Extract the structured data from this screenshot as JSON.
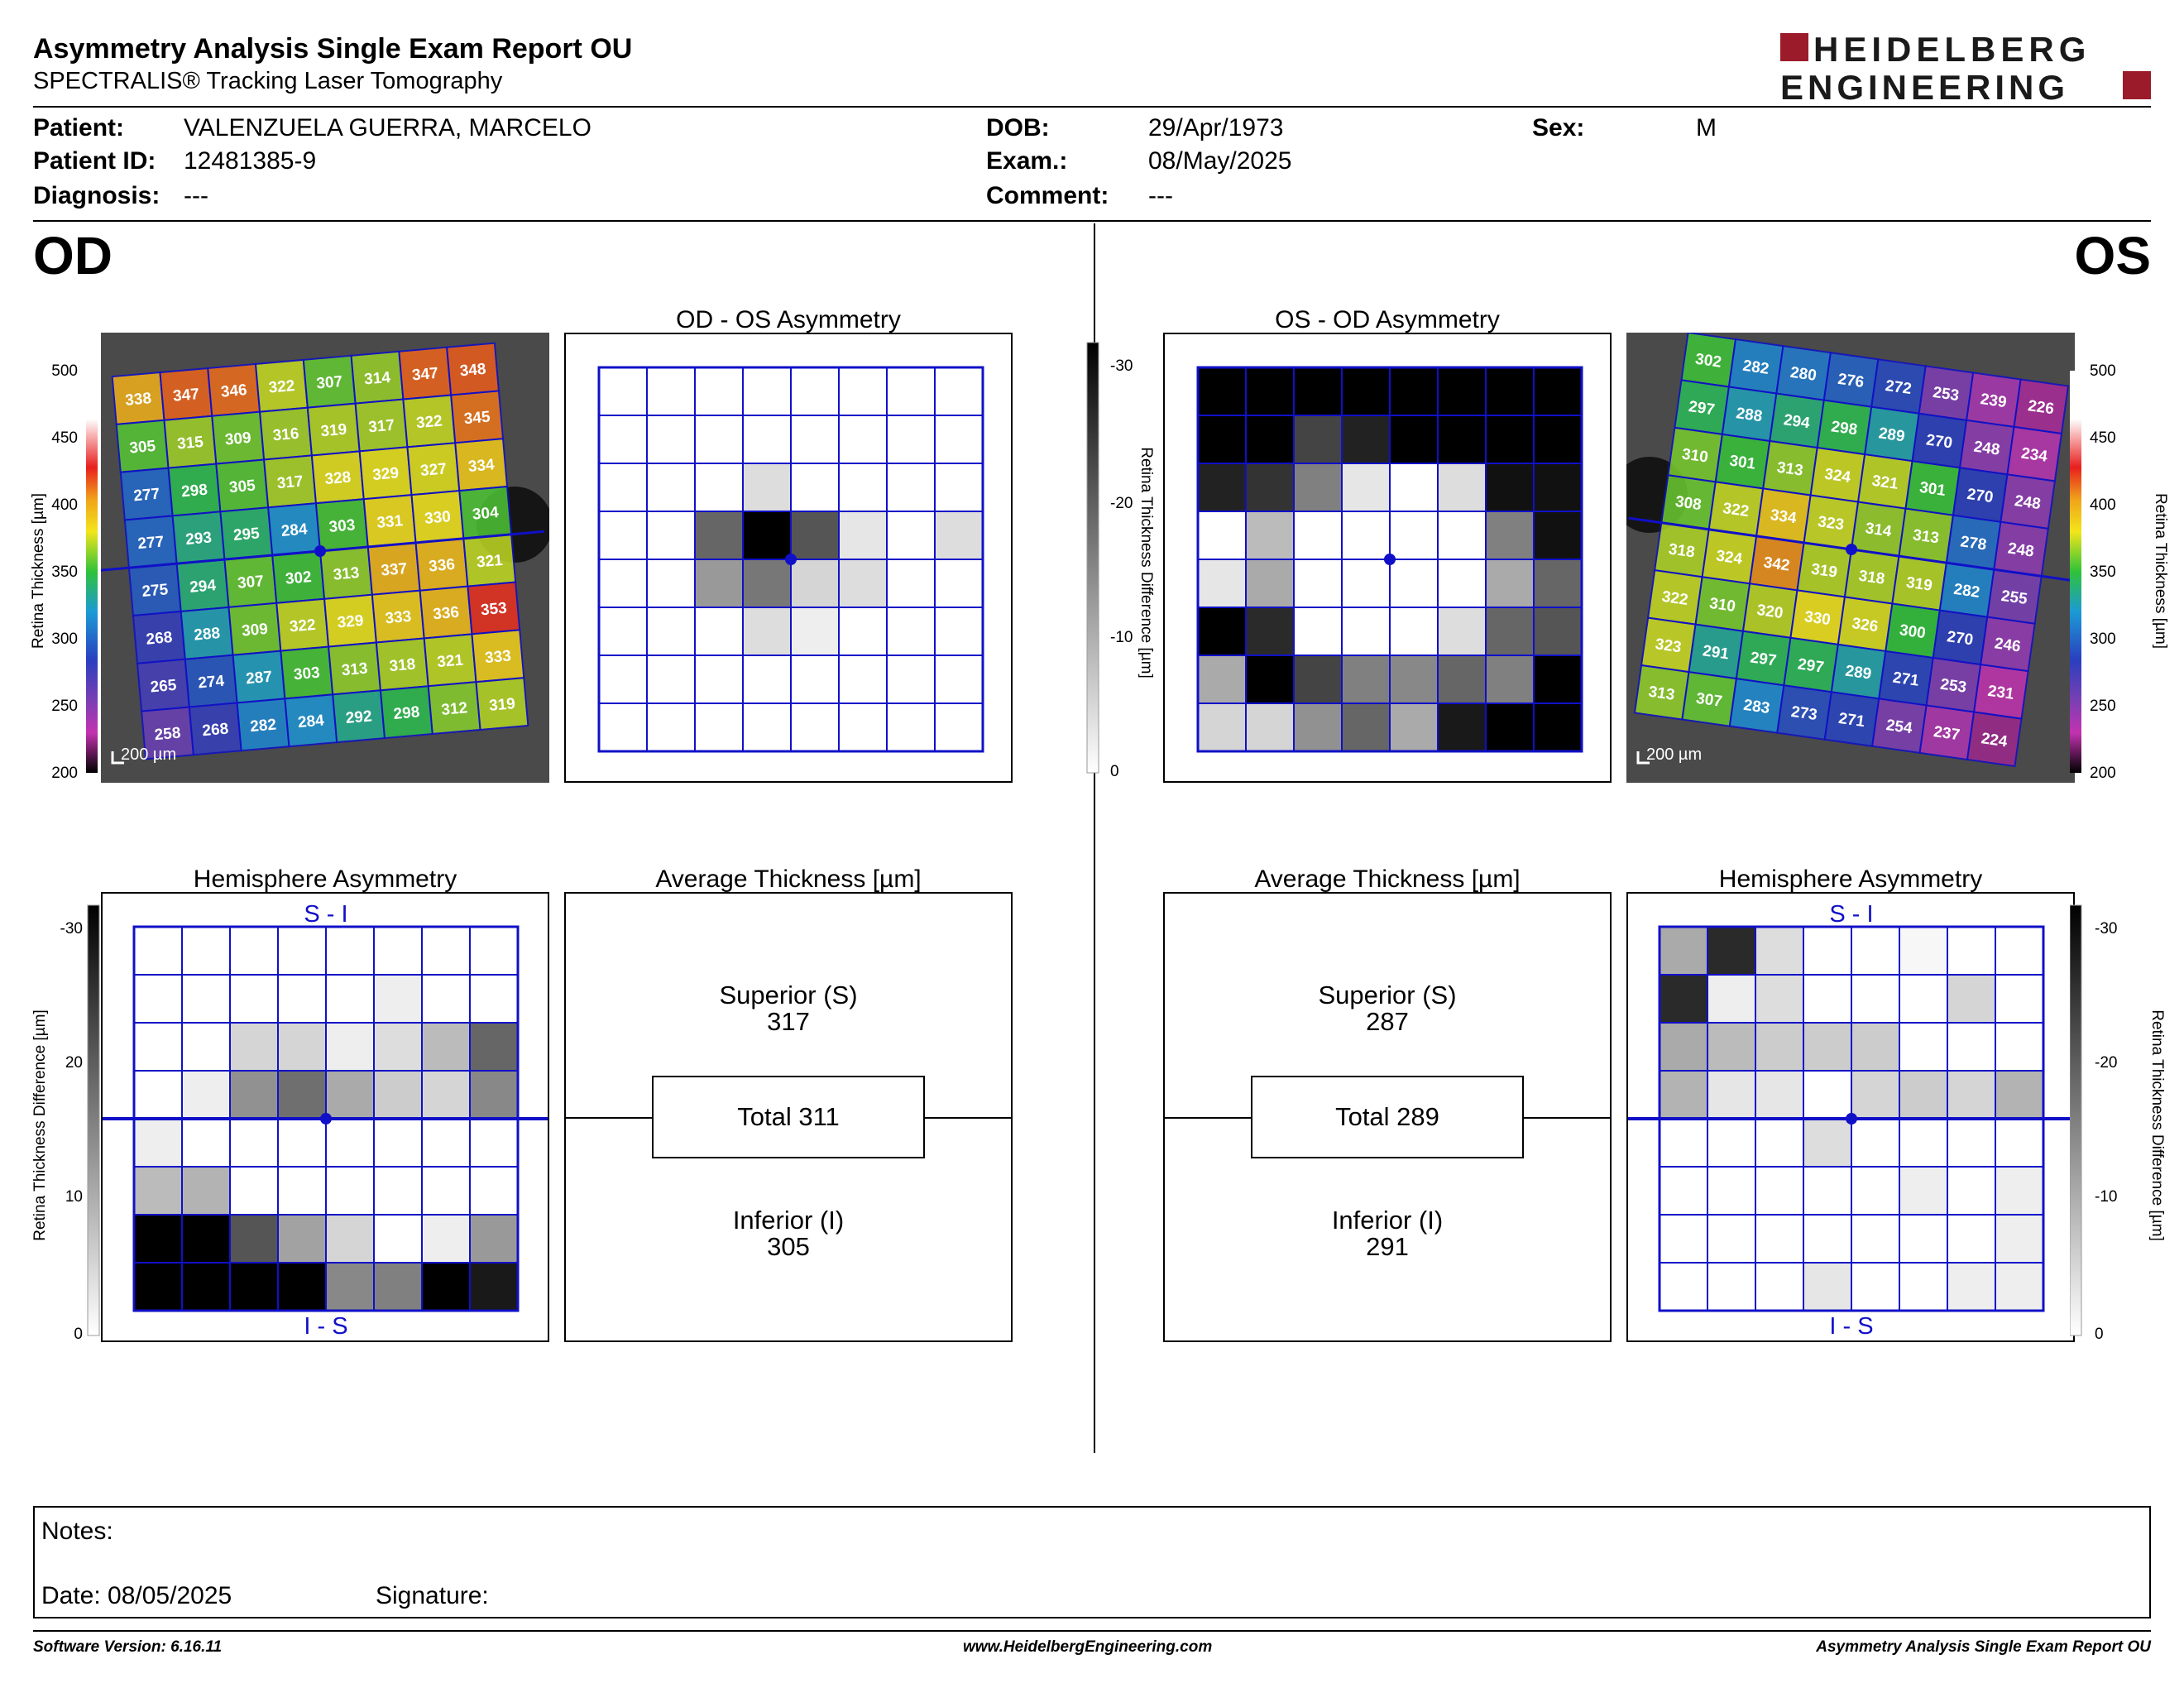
{
  "header": {
    "title": "Asymmetry Analysis Single Exam Report OU",
    "subtitle": "SPECTRALIS® Tracking Laser Tomography",
    "logo_line1": "HEIDELBERG",
    "logo_line2": "ENGINEERING"
  },
  "patient": {
    "patient_label": "Patient:",
    "patient_value": "VALENZUELA GUERRA, MARCELO",
    "id_label": "Patient ID:",
    "id_value": "12481385-9",
    "diagnosis_label": "Diagnosis:",
    "diagnosis_value": "---",
    "dob_label": "DOB:",
    "dob_value": "29/Apr/1973",
    "exam_label": "Exam.:",
    "exam_value": "08/May/2025",
    "comment_label": "Comment:",
    "comment_value": "---",
    "sex_label": "Sex:",
    "sex_value": "M"
  },
  "od": {
    "eye": "OD",
    "asym_title": "OD - OS Asymmetry",
    "hemi_title": "Hemisphere Asymmetry",
    "avg_title": "Average Thickness [µm]",
    "superior_label": "Superior (S)",
    "superior_value": "317",
    "total_label": "Total 311",
    "inferior_label": "Inferior (I)",
    "inferior_value": "305",
    "scale_label": "200 µm",
    "hemi_top": "S - I",
    "hemi_bottom": "I - S",
    "thickness_grid": [
      [
        338,
        347,
        346,
        322,
        307,
        314,
        347,
        348
      ],
      [
        305,
        315,
        309,
        316,
        319,
        317,
        322,
        345
      ],
      [
        277,
        298,
        305,
        317,
        328,
        329,
        327,
        334
      ],
      [
        277,
        293,
        295,
        284,
        303,
        331,
        330,
        304
      ],
      [
        275,
        294,
        307,
        302,
        313,
        337,
        336,
        321
      ],
      [
        268,
        288,
        309,
        322,
        329,
        333,
        336,
        353
      ],
      [
        265,
        274,
        287,
        303,
        313,
        318,
        321,
        333
      ],
      [
        258,
        268,
        282,
        284,
        292,
        298,
        312,
        319
      ]
    ],
    "asym_grid": [
      [
        0,
        0,
        0,
        0,
        0,
        0,
        0,
        0
      ],
      [
        0,
        0,
        0,
        0,
        0,
        0,
        0,
        0
      ],
      [
        0,
        0,
        0,
        4,
        0,
        0,
        0,
        0
      ],
      [
        0,
        0,
        18,
        30,
        20,
        3,
        0,
        4
      ],
      [
        0,
        0,
        12,
        16,
        5,
        4,
        0,
        0
      ],
      [
        0,
        0,
        0,
        4,
        2,
        0,
        0,
        0
      ],
      [
        0,
        0,
        0,
        0,
        0,
        0,
        0,
        0
      ],
      [
        0,
        0,
        0,
        0,
        0,
        0,
        0,
        0
      ]
    ],
    "hemi_grid": [
      [
        0,
        0,
        0,
        0,
        0,
        0,
        0,
        0
      ],
      [
        0,
        0,
        0,
        0,
        0,
        2,
        0,
        0
      ],
      [
        0,
        0,
        5,
        5,
        2,
        4,
        8,
        18
      ],
      [
        0,
        2,
        13,
        17,
        10,
        6,
        5,
        14
      ],
      [
        2,
        0,
        0,
        0,
        0,
        0,
        0,
        0
      ],
      [
        8,
        9,
        0,
        0,
        0,
        0,
        0,
        0
      ],
      [
        30,
        30,
        20,
        11,
        5,
        0,
        2,
        12
      ],
      [
        30,
        30,
        30,
        30,
        14,
        15,
        30,
        27
      ]
    ]
  },
  "os": {
    "eye": "OS",
    "asym_title": "OS - OD Asymmetry",
    "hemi_title": "Hemisphere Asymmetry",
    "avg_title": "Average Thickness [µm]",
    "superior_label": "Superior (S)",
    "superior_value": "287",
    "total_label": "Total 289",
    "inferior_label": "Inferior (I)",
    "inferior_value": "291",
    "scale_label": "200 µm",
    "hemi_top": "S - I",
    "hemi_bottom": "I - S",
    "thickness_grid": [
      [
        302,
        282,
        280,
        276,
        272,
        253,
        239,
        226
      ],
      [
        297,
        288,
        294,
        298,
        289,
        270,
        248,
        234
      ],
      [
        310,
        301,
        313,
        324,
        321,
        301,
        270,
        248
      ],
      [
        308,
        322,
        334,
        323,
        314,
        313,
        278,
        248
      ],
      [
        318,
        324,
        342,
        319,
        318,
        319,
        282,
        255
      ],
      [
        322,
        310,
        320,
        330,
        326,
        300,
        270,
        246
      ],
      [
        323,
        291,
        297,
        297,
        289,
        271,
        253,
        231
      ],
      [
        313,
        307,
        283,
        273,
        271,
        254,
        237,
        224
      ]
    ],
    "asym_grid": [
      [
        30,
        30,
        30,
        30,
        30,
        30,
        30,
        30
      ],
      [
        30,
        30,
        22,
        26,
        30,
        30,
        30,
        30
      ],
      [
        26,
        24,
        15,
        3,
        0,
        4,
        28,
        28
      ],
      [
        0,
        8,
        0,
        0,
        0,
        0,
        15,
        28
      ],
      [
        3,
        10,
        0,
        0,
        0,
        0,
        10,
        18
      ],
      [
        30,
        25,
        0,
        0,
        0,
        4,
        18,
        20
      ],
      [
        10,
        30,
        22,
        15,
        14,
        18,
        15,
        30
      ],
      [
        5,
        5,
        13,
        18,
        10,
        27,
        30,
        30
      ]
    ],
    "hemi_grid": [
      [
        10,
        25,
        4,
        0,
        0,
        1,
        0,
        0
      ],
      [
        25,
        2,
        4,
        0,
        0,
        0,
        5,
        0
      ],
      [
        10,
        8,
        6,
        6,
        6,
        0,
        0,
        0
      ],
      [
        9,
        3,
        3,
        0,
        5,
        6,
        5,
        9
      ],
      [
        0,
        0,
        0,
        4,
        0,
        0,
        0,
        0
      ],
      [
        0,
        0,
        0,
        0,
        0,
        2,
        0,
        2
      ],
      [
        0,
        0,
        0,
        0,
        0,
        0,
        0,
        2
      ],
      [
        0,
        0,
        0,
        3,
        0,
        0,
        2,
        2
      ]
    ]
  },
  "thickness_scale": {
    "label": "Retina Thickness [µm]",
    "ticks": [
      "500",
      "450",
      "400",
      "350",
      "300",
      "250",
      "200"
    ]
  },
  "diff_scale": {
    "label": "Retina Thickness Difference [µm]",
    "ticks": [
      "-30",
      "-20",
      "-10",
      "0"
    ]
  },
  "notes": {
    "notes_label": "Notes:",
    "date_label": "Date: 08/05/2025",
    "signature_label": "Signature:"
  },
  "footer": {
    "software": "Software Version: 6.16.11",
    "website": "www.HeidelbergEngineering.com",
    "report_name": "Asymmetry Analysis Single Exam Report OU"
  },
  "colors": {
    "grid_blue": "#1010c8",
    "logo_red": "#9b1b2a",
    "thickness_colormap": [
      "#ffffff",
      "#e81f1f",
      "#f0a21a",
      "#f2e51a",
      "#2fc23a",
      "#1f7a3a",
      "#1c9ad6",
      "#2a3fbf",
      "#7a3fb4",
      "#c432b0",
      "#000000"
    ]
  }
}
